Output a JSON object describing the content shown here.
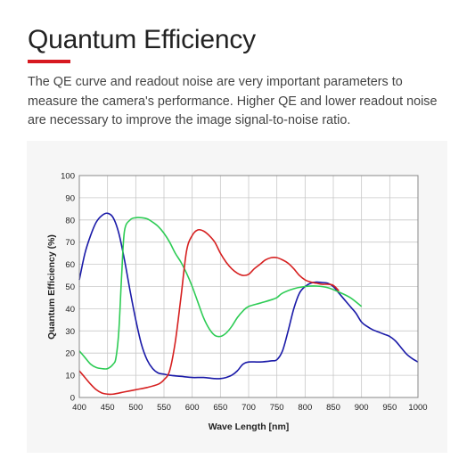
{
  "page": {
    "title": "Quantum Efficiency",
    "accent_color": "#d71920",
    "description": "The QE curve and readout noise are very important parameters to measure the camera's performance. Higher QE and lower readout noise are necessary to improve the image signal-to-noise ratio."
  },
  "chart_data": {
    "type": "line",
    "title": "",
    "xlabel": "Wave Length [nm]",
    "ylabel": "Quantum Efficiency (%)",
    "xlim": [
      400,
      1000
    ],
    "ylim": [
      0,
      100
    ],
    "xticks": [
      400,
      450,
      500,
      550,
      600,
      650,
      700,
      750,
      800,
      850,
      900,
      950,
      1000
    ],
    "yticks": [
      0,
      10,
      20,
      30,
      40,
      50,
      60,
      70,
      80,
      90,
      100
    ],
    "grid": true,
    "legend": "none",
    "series": [
      {
        "color": "#1a1aa8",
        "points": [
          [
            400,
            53
          ],
          [
            410,
            65
          ],
          [
            420,
            73
          ],
          [
            430,
            79
          ],
          [
            440,
            82
          ],
          [
            450,
            83
          ],
          [
            460,
            81
          ],
          [
            470,
            74
          ],
          [
            480,
            62
          ],
          [
            490,
            48
          ],
          [
            500,
            35
          ],
          [
            510,
            24
          ],
          [
            520,
            17
          ],
          [
            530,
            13
          ],
          [
            540,
            11
          ],
          [
            550,
            10.5
          ],
          [
            560,
            10
          ],
          [
            580,
            9.5
          ],
          [
            600,
            9
          ],
          [
            620,
            9
          ],
          [
            640,
            8.5
          ],
          [
            650,
            8.5
          ],
          [
            660,
            9
          ],
          [
            670,
            10
          ],
          [
            680,
            12
          ],
          [
            690,
            15
          ],
          [
            700,
            16
          ],
          [
            720,
            16
          ],
          [
            740,
            16.5
          ],
          [
            750,
            17
          ],
          [
            760,
            21
          ],
          [
            770,
            30
          ],
          [
            780,
            40
          ],
          [
            790,
            47
          ],
          [
            800,
            50
          ],
          [
            810,
            51.5
          ],
          [
            820,
            52
          ],
          [
            830,
            51.8
          ],
          [
            840,
            51.5
          ],
          [
            850,
            50
          ],
          [
            860,
            47
          ],
          [
            870,
            44
          ],
          [
            880,
            41
          ],
          [
            890,
            38
          ],
          [
            900,
            34
          ],
          [
            910,
            32
          ],
          [
            920,
            30.5
          ],
          [
            930,
            29.5
          ],
          [
            940,
            28.5
          ],
          [
            950,
            27.5
          ],
          [
            960,
            25.5
          ],
          [
            970,
            22.5
          ],
          [
            980,
            19.5
          ],
          [
            990,
            17.5
          ],
          [
            1000,
            16
          ]
        ]
      },
      {
        "color": "#2ecc55",
        "points": [
          [
            400,
            21
          ],
          [
            410,
            18
          ],
          [
            420,
            15
          ],
          [
            430,
            13.5
          ],
          [
            440,
            13
          ],
          [
            450,
            13
          ],
          [
            460,
            15
          ],
          [
            465,
            18
          ],
          [
            470,
            30
          ],
          [
            475,
            55
          ],
          [
            480,
            75
          ],
          [
            490,
            80
          ],
          [
            500,
            81
          ],
          [
            510,
            81
          ],
          [
            520,
            80.5
          ],
          [
            530,
            79
          ],
          [
            540,
            77
          ],
          [
            550,
            74
          ],
          [
            560,
            70
          ],
          [
            570,
            65
          ],
          [
            580,
            61
          ],
          [
            590,
            56
          ],
          [
            600,
            50
          ],
          [
            610,
            43
          ],
          [
            620,
            36
          ],
          [
            630,
            31
          ],
          [
            640,
            28
          ],
          [
            650,
            27.5
          ],
          [
            660,
            29
          ],
          [
            670,
            32
          ],
          [
            680,
            36
          ],
          [
            690,
            39
          ],
          [
            700,
            41
          ],
          [
            720,
            42.5
          ],
          [
            740,
            44
          ],
          [
            750,
            45
          ],
          [
            760,
            47
          ],
          [
            780,
            49
          ],
          [
            800,
            50
          ],
          [
            820,
            50.2
          ],
          [
            840,
            49.5
          ],
          [
            860,
            47.5
          ],
          [
            880,
            45
          ],
          [
            900,
            41
          ]
        ]
      },
      {
        "color": "#d62020",
        "points": [
          [
            400,
            12
          ],
          [
            410,
            9
          ],
          [
            420,
            6
          ],
          [
            430,
            3.5
          ],
          [
            440,
            2
          ],
          [
            450,
            1.5
          ],
          [
            460,
            1.5
          ],
          [
            480,
            2.5
          ],
          [
            500,
            3.5
          ],
          [
            520,
            4.5
          ],
          [
            540,
            6
          ],
          [
            550,
            8
          ],
          [
            560,
            12
          ],
          [
            570,
            25
          ],
          [
            580,
            45
          ],
          [
            590,
            66
          ],
          [
            600,
            73
          ],
          [
            610,
            75.5
          ],
          [
            620,
            75
          ],
          [
            630,
            73
          ],
          [
            640,
            70
          ],
          [
            650,
            65
          ],
          [
            660,
            61
          ],
          [
            670,
            58
          ],
          [
            680,
            56
          ],
          [
            690,
            55
          ],
          [
            700,
            55.5
          ],
          [
            710,
            58
          ],
          [
            720,
            60
          ],
          [
            730,
            62
          ],
          [
            740,
            63
          ],
          [
            750,
            63
          ],
          [
            760,
            62
          ],
          [
            770,
            60.5
          ],
          [
            780,
            58
          ],
          [
            790,
            55
          ],
          [
            800,
            53
          ],
          [
            810,
            52
          ],
          [
            820,
            51.5
          ],
          [
            830,
            51
          ],
          [
            840,
            51
          ],
          [
            850,
            50.5
          ],
          [
            860,
            48
          ]
        ]
      }
    ]
  }
}
